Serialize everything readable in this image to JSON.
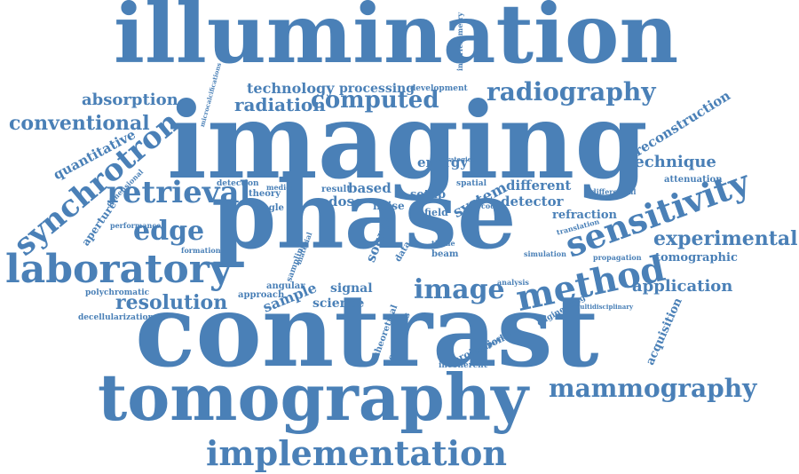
{
  "word_color": "#4a80b7",
  "background": "#ffffff",
  "words": [
    "illumination",
    "imaging",
    "phase",
    "contrast",
    "tomography",
    "implementation",
    "mammography",
    "sensitivity",
    "method",
    "laboratory",
    "synchrotron",
    "retrieval",
    "edge",
    "image",
    "radiography",
    "conventional",
    "absorption",
    "experimental",
    "resolution",
    "application",
    "computed",
    "radiation",
    "technology",
    "processing",
    "technique",
    "reconstruction",
    "quantitative",
    "energy",
    "system",
    "different",
    "detector",
    "refraction",
    "sample",
    "signal",
    "science",
    "source",
    "dose",
    "based",
    "setup",
    "noise",
    "field",
    "tomographic",
    "acquisition",
    "development",
    "interferometry",
    "aperture",
    "attenuation",
    "detection",
    "translation",
    "differential",
    "propagation",
    "spatial",
    "coded",
    "theory",
    "single",
    "angular",
    "approach",
    "performance",
    "formation",
    "polychromatic",
    "decellularization",
    "dimensional",
    "projection",
    "inspection",
    "incoherent",
    "analysis",
    "simulation",
    "beam",
    "tissue",
    "data",
    "result",
    "medical",
    "continuous",
    "theoretical",
    "engineering",
    "multidisciplinary",
    "sampling",
    "material",
    "microcalcifications",
    "strategies"
  ]
}
